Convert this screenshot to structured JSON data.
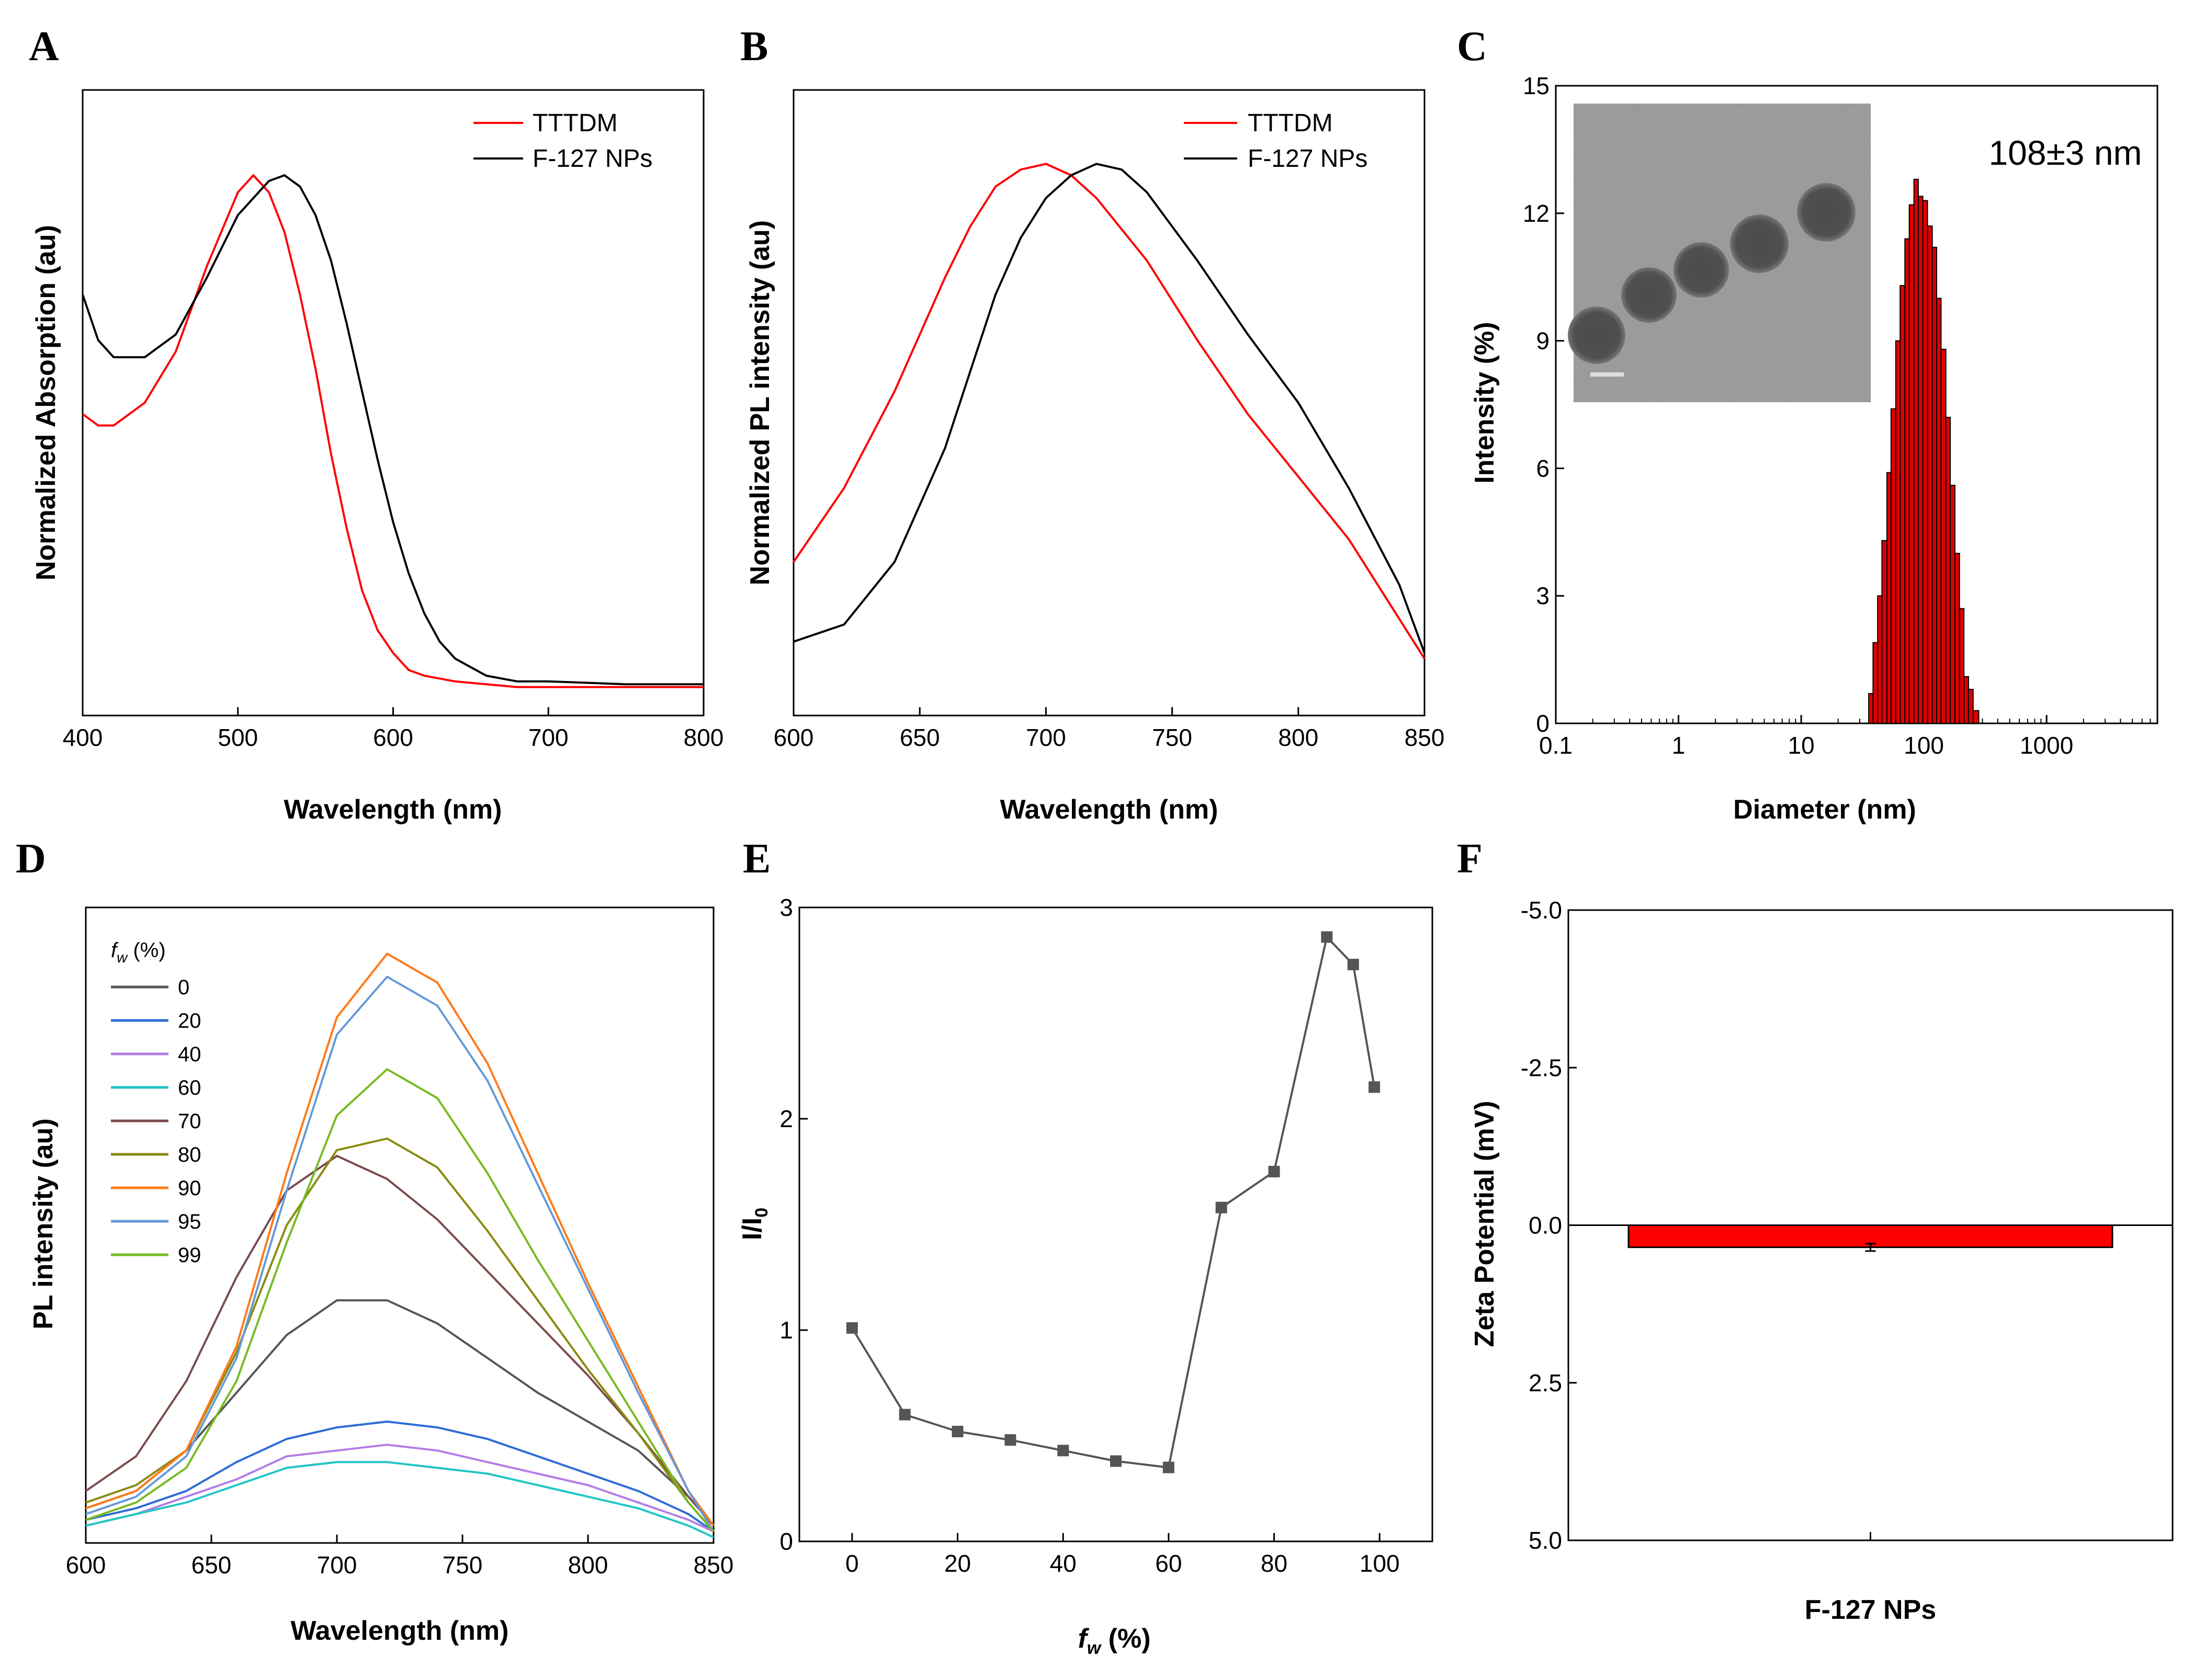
{
  "chart_data": [
    {
      "panel": "A",
      "type": "line",
      "xlabel": "Wavelength (nm)",
      "ylabel": "Normalized Absorption (au)",
      "xlim": [
        400,
        800
      ],
      "ylim": [
        0,
        1.1
      ],
      "xticks": [
        400,
        500,
        600,
        700,
        800
      ],
      "legend_position": "top-right",
      "series": [
        {
          "name": "TTTDM",
          "color": "#ff0000",
          "x": [
            400,
            410,
            420,
            440,
            460,
            480,
            500,
            510,
            520,
            530,
            540,
            550,
            560,
            570,
            580,
            590,
            600,
            610,
            620,
            640,
            660,
            680,
            700,
            750,
            800
          ],
          "y": [
            0.53,
            0.51,
            0.51,
            0.55,
            0.64,
            0.79,
            0.92,
            0.95,
            0.92,
            0.85,
            0.74,
            0.61,
            0.46,
            0.33,
            0.22,
            0.15,
            0.11,
            0.08,
            0.07,
            0.06,
            0.055,
            0.05,
            0.05,
            0.05,
            0.05
          ]
        },
        {
          "name": "F-127 NPs",
          "color": "#000000",
          "x": [
            400,
            410,
            420,
            440,
            460,
            480,
            500,
            520,
            530,
            540,
            550,
            560,
            570,
            580,
            590,
            600,
            610,
            620,
            630,
            640,
            660,
            680,
            700,
            750,
            800
          ],
          "y": [
            0.74,
            0.66,
            0.63,
            0.63,
            0.67,
            0.77,
            0.88,
            0.94,
            0.95,
            0.93,
            0.88,
            0.8,
            0.69,
            0.57,
            0.45,
            0.34,
            0.25,
            0.18,
            0.13,
            0.1,
            0.07,
            0.06,
            0.06,
            0.055,
            0.055
          ]
        }
      ]
    },
    {
      "panel": "B",
      "type": "line",
      "xlabel": "Wavelength (nm)",
      "ylabel": "Normalized PL intensity (au)",
      "xlim": [
        600,
        850
      ],
      "ylim": [
        0,
        1.1
      ],
      "xticks": [
        600,
        650,
        700,
        750,
        800,
        850
      ],
      "legend_position": "top-right",
      "series": [
        {
          "name": "TTTDM",
          "color": "#ff0000",
          "x": [
            600,
            620,
            640,
            660,
            670,
            680,
            690,
            700,
            710,
            720,
            740,
            760,
            780,
            800,
            820,
            840,
            850
          ],
          "y": [
            0.27,
            0.4,
            0.57,
            0.77,
            0.86,
            0.93,
            0.96,
            0.97,
            0.95,
            0.91,
            0.8,
            0.66,
            0.53,
            0.42,
            0.31,
            0.17,
            0.1
          ]
        },
        {
          "name": "F-127 NPs",
          "color": "#000000",
          "x": [
            600,
            620,
            640,
            660,
            680,
            690,
            700,
            710,
            720,
            730,
            740,
            760,
            780,
            800,
            820,
            840,
            850
          ],
          "y": [
            0.13,
            0.16,
            0.27,
            0.47,
            0.74,
            0.84,
            0.91,
            0.95,
            0.97,
            0.96,
            0.92,
            0.8,
            0.67,
            0.55,
            0.4,
            0.23,
            0.11
          ]
        }
      ]
    },
    {
      "panel": "C",
      "type": "bar",
      "xlabel": "Diameter (nm)",
      "ylabel": "Intensity (%)",
      "xscale": "log",
      "xlim": [
        0.1,
        8000
      ],
      "ylim": [
        0,
        15
      ],
      "xticks": [
        0.1,
        1,
        10,
        100,
        1000
      ],
      "xtick_labels": [
        "0.1",
        "1",
        "10",
        "100",
        "1000"
      ],
      "yticks": [
        0,
        3,
        6,
        9,
        12,
        15
      ],
      "annotation": "108±3 nm",
      "inset_image": "TEM micrograph of nanoparticles",
      "color": "#dd0000",
      "bins": [
        {
          "lo": 35.5,
          "hi": 38.5,
          "value": 0.7
        },
        {
          "lo": 38.5,
          "hi": 42,
          "value": 1.9
        },
        {
          "lo": 42,
          "hi": 45.5,
          "value": 3.0
        },
        {
          "lo": 45.5,
          "hi": 50,
          "value": 4.3
        },
        {
          "lo": 50,
          "hi": 54,
          "value": 5.9
        },
        {
          "lo": 54,
          "hi": 59,
          "value": 7.4
        },
        {
          "lo": 59,
          "hi": 64,
          "value": 9.0
        },
        {
          "lo": 64,
          "hi": 70,
          "value": 10.3
        },
        {
          "lo": 70,
          "hi": 76,
          "value": 11.4
        },
        {
          "lo": 76,
          "hi": 83,
          "value": 12.2
        },
        {
          "lo": 83,
          "hi": 90,
          "value": 12.8
        },
        {
          "lo": 90,
          "hi": 98,
          "value": 12.4
        },
        {
          "lo": 98,
          "hi": 107,
          "value": 12.3
        },
        {
          "lo": 107,
          "hi": 117,
          "value": 11.7
        },
        {
          "lo": 117,
          "hi": 127,
          "value": 11.2
        },
        {
          "lo": 127,
          "hi": 138,
          "value": 10.0
        },
        {
          "lo": 138,
          "hi": 151,
          "value": 8.8
        },
        {
          "lo": 151,
          "hi": 164,
          "value": 7.2
        },
        {
          "lo": 164,
          "hi": 179,
          "value": 5.6
        },
        {
          "lo": 179,
          "hi": 195,
          "value": 4.0
        },
        {
          "lo": 195,
          "hi": 212,
          "value": 2.7
        },
        {
          "lo": 212,
          "hi": 231,
          "value": 1.1
        },
        {
          "lo": 231,
          "hi": 252,
          "value": 0.8
        },
        {
          "lo": 252,
          "hi": 280,
          "value": 0.3
        }
      ]
    },
    {
      "panel": "D",
      "type": "line",
      "xlabel": "Wavelength (nm)",
      "ylabel": "PL intensity (au)",
      "xlim": [
        600,
        850
      ],
      "ylim": [
        0,
        1.1
      ],
      "xticks": [
        600,
        650,
        700,
        750,
        800,
        850
      ],
      "legend_title_symbol": "f",
      "legend_title_subscript": "w",
      "legend_title_suffix": " (%)",
      "legend_position": "top-left",
      "x": [
        600,
        620,
        640,
        660,
        680,
        700,
        720,
        740,
        760,
        780,
        800,
        820,
        840,
        850
      ],
      "series": [
        {
          "name": "0",
          "color": "#555555",
          "values": [
            0.06,
            0.09,
            0.16,
            0.26,
            0.36,
            0.42,
            0.42,
            0.38,
            0.32,
            0.26,
            0.21,
            0.16,
            0.08,
            0.03
          ]
        },
        {
          "name": "20",
          "color": "#2e6bd6",
          "values": [
            0.04,
            0.06,
            0.09,
            0.14,
            0.18,
            0.2,
            0.21,
            0.2,
            0.18,
            0.15,
            0.12,
            0.09,
            0.05,
            0.02
          ]
        },
        {
          "name": "40",
          "color": "#b47de6",
          "values": [
            0.03,
            0.05,
            0.08,
            0.11,
            0.15,
            0.16,
            0.17,
            0.16,
            0.14,
            0.12,
            0.1,
            0.07,
            0.04,
            0.02
          ]
        },
        {
          "name": "60",
          "color": "#22c5c5",
          "values": [
            0.03,
            0.05,
            0.07,
            0.1,
            0.13,
            0.14,
            0.14,
            0.13,
            0.12,
            0.1,
            0.08,
            0.06,
            0.03,
            0.01
          ]
        },
        {
          "name": "70",
          "color": "#7b4b4b",
          "values": [
            0.09,
            0.15,
            0.28,
            0.46,
            0.61,
            0.67,
            0.63,
            0.56,
            0.47,
            0.38,
            0.29,
            0.19,
            0.08,
            0.03
          ]
        },
        {
          "name": "80",
          "color": "#8a8a10",
          "values": [
            0.07,
            0.1,
            0.16,
            0.33,
            0.55,
            0.68,
            0.7,
            0.65,
            0.54,
            0.42,
            0.3,
            0.19,
            0.07,
            0.02
          ]
        },
        {
          "name": "90",
          "color": "#ff7a1a",
          "values": [
            0.06,
            0.09,
            0.16,
            0.34,
            0.64,
            0.91,
            1.02,
            0.97,
            0.83,
            0.64,
            0.45,
            0.27,
            0.09,
            0.03
          ]
        },
        {
          "name": "95",
          "color": "#6699d8",
          "values": [
            0.05,
            0.08,
            0.15,
            0.32,
            0.61,
            0.88,
            0.98,
            0.93,
            0.8,
            0.62,
            0.44,
            0.26,
            0.09,
            0.02
          ]
        },
        {
          "name": "99",
          "color": "#77bb22",
          "values": [
            0.04,
            0.07,
            0.13,
            0.28,
            0.52,
            0.74,
            0.82,
            0.77,
            0.64,
            0.49,
            0.35,
            0.21,
            0.07,
            0.02
          ]
        }
      ]
    },
    {
      "panel": "E",
      "type": "line",
      "xlabel_symbol": "f",
      "xlabel_subscript": "w",
      "xlabel_suffix": " (%)",
      "ylabel_symbol": "I/I",
      "ylabel_subscript": "0",
      "xlim": [
        -10,
        110
      ],
      "ylim": [
        0,
        3
      ],
      "xticks": [
        0,
        20,
        40,
        60,
        80,
        100
      ],
      "yticks": [
        0,
        1,
        2,
        3
      ],
      "color": "#555555",
      "x": [
        0,
        10,
        20,
        30,
        40,
        50,
        60,
        70,
        80,
        90,
        95,
        99
      ],
      "y": [
        1.01,
        0.6,
        0.52,
        0.48,
        0.43,
        0.38,
        0.35,
        1.58,
        1.75,
        2.86,
        2.73,
        2.15
      ]
    },
    {
      "panel": "F",
      "type": "bar",
      "categories": [
        "F-127 NPs"
      ],
      "values": [
        0.35
      ],
      "error": [
        0.06
      ],
      "color": "#ff0000",
      "ylabel": "Zeta Potential (mV)",
      "ylim": [
        -5.0,
        5.0
      ],
      "y_inverted": true,
      "yticks": [
        -5.0,
        -2.5,
        0.0,
        2.5,
        5.0
      ],
      "ytick_labels": [
        "-5.0",
        "-2.5",
        "0.0",
        "2.5",
        "5.0"
      ]
    }
  ]
}
